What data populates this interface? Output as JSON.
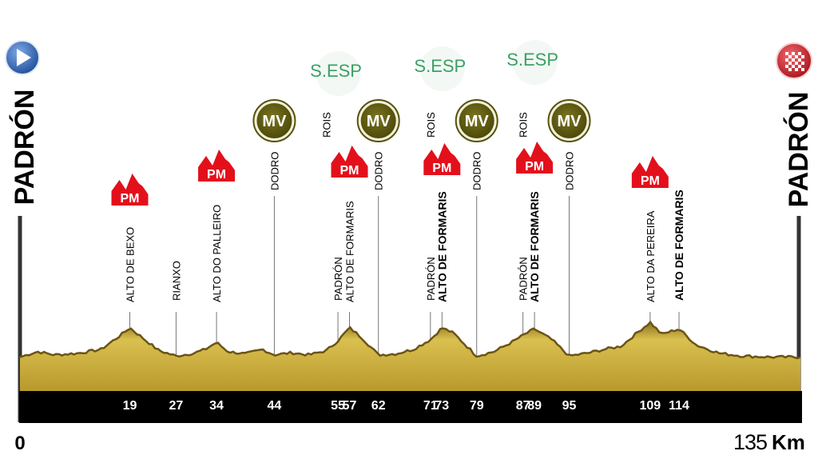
{
  "chart_data": {
    "type": "area",
    "title": "",
    "xlabel": "",
    "ylabel": "",
    "xlim": [
      0,
      135
    ],
    "start": {
      "label": "PADRÓN",
      "km_label": "0"
    },
    "finish": {
      "label": "PADRÓN",
      "km_label": "135",
      "unit": "Km"
    },
    "profile": {
      "x": [
        0,
        3,
        6,
        10,
        14,
        17,
        19,
        21,
        24,
        27,
        30,
        32,
        34,
        36,
        39,
        42,
        44,
        47,
        50,
        53,
        55,
        57,
        59,
        62,
        65,
        68,
        71,
        73,
        75,
        79,
        82,
        85,
        87,
        89,
        92,
        95,
        98,
        101,
        104,
        107,
        109,
        111,
        114,
        117,
        121,
        125,
        130,
        135
      ],
      "y": [
        0.08,
        0.18,
        0.12,
        0.15,
        0.22,
        0.45,
        0.62,
        0.45,
        0.2,
        0.1,
        0.15,
        0.22,
        0.35,
        0.18,
        0.14,
        0.22,
        0.12,
        0.16,
        0.12,
        0.2,
        0.38,
        0.62,
        0.45,
        0.12,
        0.14,
        0.22,
        0.4,
        0.62,
        0.52,
        0.1,
        0.18,
        0.35,
        0.48,
        0.6,
        0.4,
        0.1,
        0.15,
        0.22,
        0.28,
        0.55,
        0.72,
        0.5,
        0.6,
        0.3,
        0.15,
        0.1,
        0.08,
        0.08
      ]
    },
    "points": [
      {
        "km": 19,
        "km_label": "19",
        "name": "ALTO DE BEXO",
        "bold": false,
        "badge": "PM"
      },
      {
        "km": 27,
        "km_label": "27",
        "name": "RIANXO",
        "bold": false,
        "badge": ""
      },
      {
        "km": 34,
        "km_label": "34",
        "name": "ALTO DO PALLEIRO",
        "bold": false,
        "badge": "PM"
      },
      {
        "km": 44,
        "km_label": "44",
        "name": "DODRO",
        "bold": false,
        "badge": "MV"
      },
      {
        "km": 55,
        "km_label": "55",
        "name": "PADRÓN",
        "bold": false,
        "badge": ""
      },
      {
        "km": 57,
        "km_label": "57",
        "name": "ALTO DE FORMARIS",
        "bold": false,
        "badge": "PM"
      },
      {
        "km": 62,
        "km_label": "62",
        "name": "DODRO",
        "bold": false,
        "badge": "MV"
      },
      {
        "km": 71,
        "km_label": "71",
        "name": "PADRÓN",
        "bold": false,
        "badge": ""
      },
      {
        "km": 73,
        "km_label": "73",
        "name": "ALTO DE FORMARIS",
        "bold": true,
        "badge": "PM"
      },
      {
        "km": 79,
        "km_label": "79",
        "name": "DODRO",
        "bold": false,
        "badge": "MV"
      },
      {
        "km": 87,
        "km_label": "87",
        "name": "PADRÓN",
        "bold": false,
        "badge": ""
      },
      {
        "km": 89,
        "km_label": "89",
        "name": "ALTO DE FORMARIS",
        "bold": true,
        "badge": "PM"
      },
      {
        "km": 95,
        "km_label": "95",
        "name": "DODRO",
        "bold": false,
        "badge": "MV"
      },
      {
        "km": 109,
        "km_label": "109",
        "name": "ALTO DA PEREIRA",
        "bold": false,
        "badge": "PM"
      },
      {
        "km": 114,
        "km_label": "114",
        "name": "ALTO DE FORMARIS",
        "bold": true,
        "badge": ""
      }
    ],
    "extra_labels": [
      {
        "km": 53,
        "name": "ROIS"
      },
      {
        "km": 71,
        "name": "ROIS"
      },
      {
        "km": 87,
        "name": "ROIS"
      }
    ],
    "sprints": [
      {
        "label": "S.ESP",
        "km": 53
      },
      {
        "label": "S.ESP",
        "km": 71
      },
      {
        "label": "S.ESP",
        "km": 87
      }
    ],
    "badges": {
      "pm": "PM",
      "mv": "MV"
    },
    "colors": {
      "terrain": "#c9a93a",
      "terrain_dark": "#6b5416",
      "base": "#000000",
      "pm": "#e3101b",
      "mv": "#5e5a12",
      "sprint": "#3aa064",
      "start_icon": "#2a5fb0",
      "finish_icon": "#d81f26"
    }
  }
}
